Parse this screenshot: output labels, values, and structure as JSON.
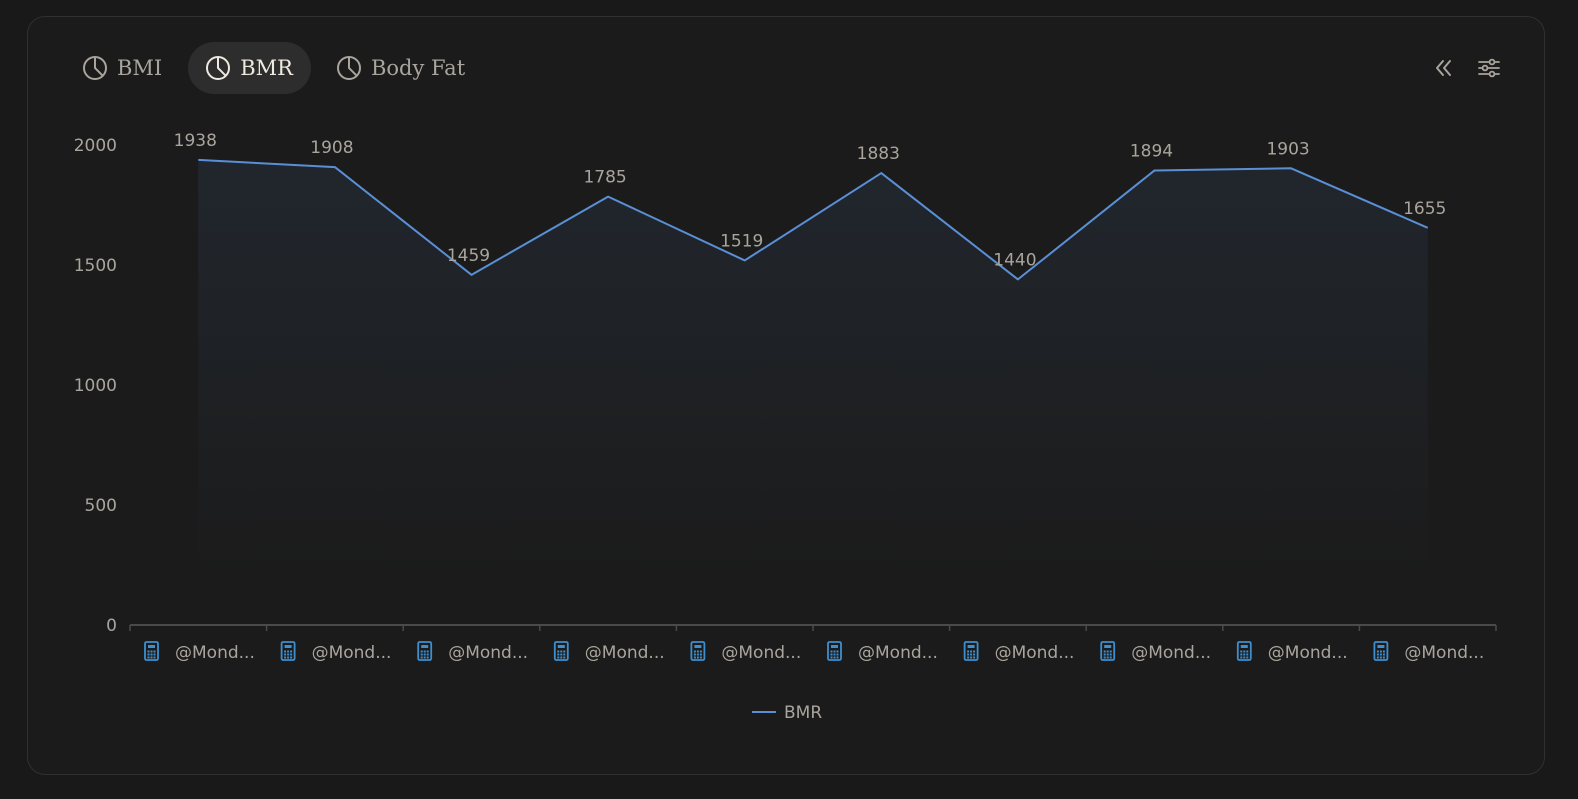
{
  "tabs": [
    {
      "label": "BMI",
      "icon": "pie-chart-icon",
      "active": false
    },
    {
      "label": "BMR",
      "icon": "pie-chart-icon",
      "active": true
    },
    {
      "label": "Body Fat",
      "icon": "pie-chart-icon",
      "active": false
    }
  ],
  "toolbar": {
    "collapse_icon": "double-chevron-left-icon",
    "settings_icon": "sliders-icon"
  },
  "colors": {
    "line": "#5a8fd6",
    "text": "#a9a59d",
    "axis": "#4a4a4a",
    "category_icon": "#3d8fd0"
  },
  "chart_data": {
    "type": "area",
    "categories": [
      "@Mond...",
      "@Mond...",
      "@Mond...",
      "@Mond...",
      "@Mond...",
      "@Mond...",
      "@Mond...",
      "@Mond...",
      "@Mond...",
      "@Mond..."
    ],
    "category_icon": "calculator-icon",
    "series": [
      {
        "name": "BMR",
        "values": [
          1938,
          1908,
          1459,
          1785,
          1519,
          1883,
          1440,
          1894,
          1903,
          1655
        ]
      }
    ],
    "y_ticks": [
      0,
      500,
      1000,
      1500,
      2000
    ],
    "ylim": [
      0,
      2000
    ],
    "data_labels": true,
    "grid": false,
    "legend": "bottom-center"
  }
}
